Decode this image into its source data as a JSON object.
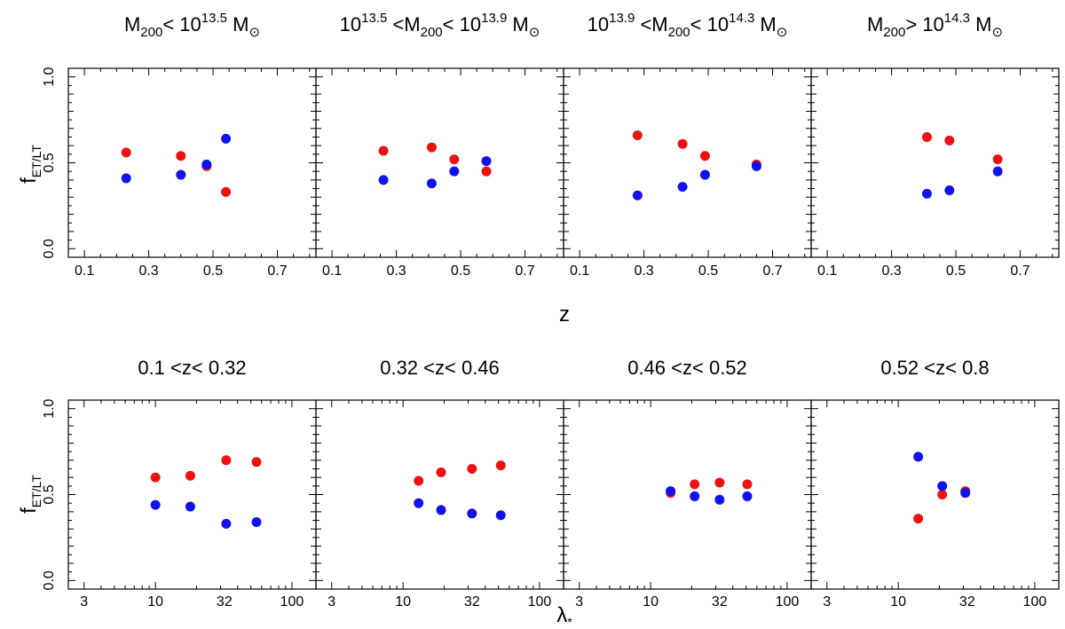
{
  "chart_data": [
    {
      "type": "scatter",
      "row": "top",
      "xlabel": "z",
      "ylabel": "f",
      "ylabel_sub": "ET/LT",
      "x_scale": "linear",
      "xlim": [
        0.05,
        0.82
      ],
      "ylim": [
        -0.05,
        1.05
      ],
      "xticks": [
        0.1,
        0.3,
        0.5,
        0.7
      ],
      "xtick_labels": [
        "0.1",
        "0.3",
        "0.5",
        "0.7"
      ],
      "yticks": [
        0.0,
        0.5,
        1.0
      ],
      "ytick_labels": [
        "0.0",
        "0.5",
        "1.0"
      ],
      "series_colors": {
        "early_type": "#ee1111",
        "late_type": "#1111ee"
      },
      "panels": [
        {
          "title": [
            {
              "t": "M"
            },
            {
              "t": "200",
              "sub": true
            },
            {
              "t": "< "
            },
            {
              "t": "10"
            },
            {
              "t": "13.5",
              "sup": true
            },
            {
              "t": " M"
            },
            {
              "t": "⊙",
              "sub": true
            }
          ],
          "early_type": {
            "x": [
              0.23,
              0.4,
              0.48,
              0.54
            ],
            "y": [
              0.56,
              0.54,
              0.48,
              0.33
            ]
          },
          "late_type": {
            "x": [
              0.23,
              0.4,
              0.48,
              0.54
            ],
            "y": [
              0.41,
              0.43,
              0.49,
              0.64
            ]
          }
        },
        {
          "title": [
            {
              "t": "10"
            },
            {
              "t": "13.5",
              "sup": true
            },
            {
              "t": " <M"
            },
            {
              "t": "200",
              "sub": true
            },
            {
              "t": "< "
            },
            {
              "t": "10"
            },
            {
              "t": "13.9",
              "sup": true
            },
            {
              "t": " M"
            },
            {
              "t": "⊙",
              "sub": true
            }
          ],
          "early_type": {
            "x": [
              0.26,
              0.41,
              0.48,
              0.58
            ],
            "y": [
              0.57,
              0.59,
              0.52,
              0.45
            ]
          },
          "late_type": {
            "x": [
              0.26,
              0.41,
              0.48,
              0.58
            ],
            "y": [
              0.4,
              0.38,
              0.45,
              0.51
            ]
          }
        },
        {
          "title": [
            {
              "t": "10"
            },
            {
              "t": "13.9",
              "sup": true
            },
            {
              "t": " <M"
            },
            {
              "t": "200",
              "sub": true
            },
            {
              "t": "< "
            },
            {
              "t": "10"
            },
            {
              "t": "14.3",
              "sup": true
            },
            {
              "t": " M"
            },
            {
              "t": "⊙",
              "sub": true
            }
          ],
          "early_type": {
            "x": [
              0.28,
              0.42,
              0.49,
              0.65
            ],
            "y": [
              0.66,
              0.61,
              0.54,
              0.49
            ]
          },
          "late_type": {
            "x": [
              0.28,
              0.42,
              0.49,
              0.65
            ],
            "y": [
              0.31,
              0.36,
              0.43,
              0.48
            ]
          }
        },
        {
          "title": [
            {
              "t": "M"
            },
            {
              "t": "200",
              "sub": true
            },
            {
              "t": "> "
            },
            {
              "t": "10"
            },
            {
              "t": "14.3",
              "sup": true
            },
            {
              "t": " M"
            },
            {
              "t": "⊙",
              "sub": true
            }
          ],
          "early_type": {
            "x": [
              0.41,
              0.48,
              0.63
            ],
            "y": [
              0.65,
              0.63,
              0.52
            ]
          },
          "late_type": {
            "x": [
              0.41,
              0.48,
              0.63
            ],
            "y": [
              0.32,
              0.34,
              0.45
            ]
          }
        }
      ]
    },
    {
      "type": "scatter",
      "row": "bottom",
      "xlabel": "λ",
      "xlabel_sub": "*",
      "ylabel": "f",
      "ylabel_sub": "ET/LT",
      "x_scale": "log",
      "xlim": [
        2.3,
        150
      ],
      "ylim": [
        -0.05,
        1.05
      ],
      "xticks": [
        3,
        10,
        32,
        100
      ],
      "xtick_labels": [
        "3",
        "10",
        "32",
        "100"
      ],
      "yticks": [
        0.0,
        0.5,
        1.0
      ],
      "ytick_labels": [
        "0.0",
        "0.5",
        "1.0"
      ],
      "series_colors": {
        "early_type": "#ee1111",
        "late_type": "#1111ee"
      },
      "panels": [
        {
          "title": [
            {
              "t": "0.1  <z<  0.32"
            }
          ],
          "early_type": {
            "x": [
              10,
              18,
              33,
              55
            ],
            "y": [
              0.6,
              0.61,
              0.7,
              0.69
            ]
          },
          "late_type": {
            "x": [
              10,
              18,
              33,
              55
            ],
            "y": [
              0.44,
              0.43,
              0.33,
              0.34
            ]
          }
        },
        {
          "title": [
            {
              "t": "0.32  <z<  0.46"
            }
          ],
          "early_type": {
            "x": [
              13,
              19,
              32,
              52
            ],
            "y": [
              0.58,
              0.63,
              0.65,
              0.67
            ]
          },
          "late_type": {
            "x": [
              13,
              19,
              32,
              52
            ],
            "y": [
              0.45,
              0.41,
              0.39,
              0.38
            ]
          }
        },
        {
          "title": [
            {
              "t": "0.46  <z<  0.52"
            }
          ],
          "early_type": {
            "x": [
              14,
              21,
              32,
              51
            ],
            "y": [
              0.51,
              0.56,
              0.57,
              0.56
            ]
          },
          "late_type": {
            "x": [
              14,
              21,
              32,
              51
            ],
            "y": [
              0.52,
              0.49,
              0.47,
              0.49
            ]
          }
        },
        {
          "title": [
            {
              "t": "0.52  <z<  0.8"
            }
          ],
          "early_type": {
            "x": [
              14,
              21,
              31
            ],
            "y": [
              0.36,
              0.5,
              0.52
            ]
          },
          "late_type": {
            "x": [
              14,
              21,
              31
            ],
            "y": [
              0.72,
              0.55,
              0.51
            ]
          }
        }
      ]
    }
  ]
}
